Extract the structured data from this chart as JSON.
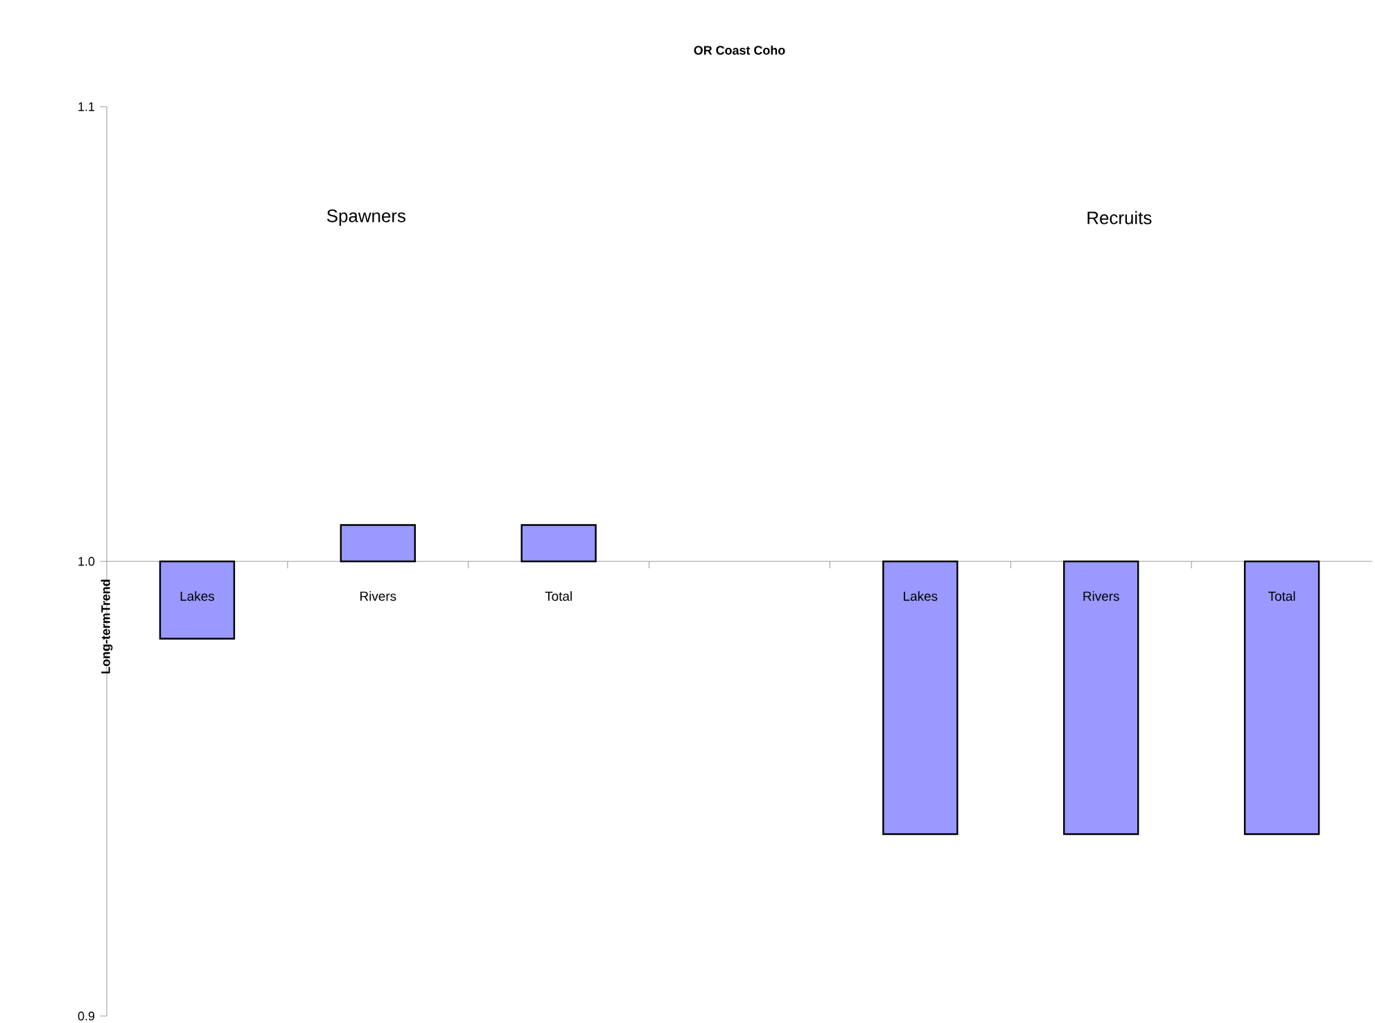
{
  "chart_data": {
    "type": "bar",
    "title": "OR Coast Coho",
    "ylabel": "Long-termTrend",
    "categories": [
      "Lakes",
      "Rivers",
      "Total",
      null,
      "Lakes",
      "Rivers",
      "Total"
    ],
    "values": [
      -0.017,
      0.008,
      0.008,
      null,
      -0.06,
      -0.06,
      -0.06
    ],
    "base": [
      1.0,
      1.0,
      1.0,
      null,
      1.0,
      1.0,
      1.0
    ],
    "color": "#9999ff",
    "ylim": [
      0.9,
      1.1
    ],
    "yticks": [
      {
        "value": 0.9,
        "label": "0.9"
      },
      {
        "value": 1.0,
        "label": "1.0"
      },
      {
        "value": 1.1,
        "label": "1.1"
      }
    ],
    "annotations": [
      "Spawners",
      "Recruits"
    ],
    "grid": false
  }
}
